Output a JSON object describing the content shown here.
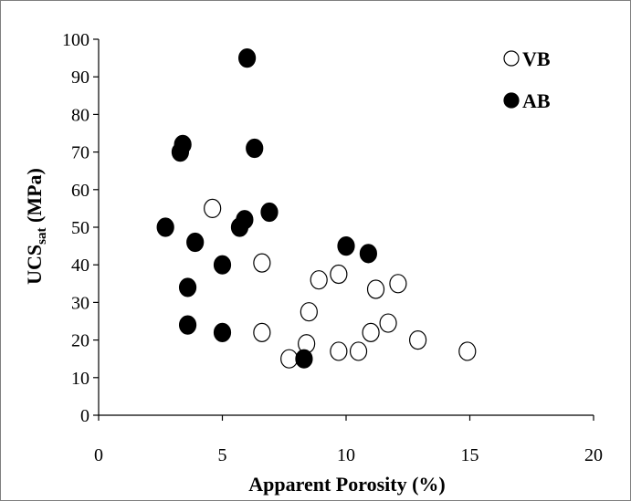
{
  "chart_data": {
    "type": "scatter",
    "title": "",
    "xlabel": "Apparent Porosity (%)",
    "ylabel": {
      "main": "UCS",
      "sub": "sat",
      "suffix": " (MPa)"
    },
    "xlim": [
      0,
      20
    ],
    "ylim": [
      0,
      100
    ],
    "xticks": [
      0,
      5,
      10,
      15,
      20
    ],
    "yticks": [
      0,
      10,
      20,
      30,
      40,
      50,
      60,
      70,
      80,
      90,
      100
    ],
    "grid": false,
    "legend_position": "top-right",
    "series": [
      {
        "name": "VB",
        "marker": "open-circle",
        "color": "#000000",
        "points": [
          [
            4.6,
            55
          ],
          [
            6.6,
            40.5
          ],
          [
            6.6,
            22
          ],
          [
            7.7,
            15
          ],
          [
            8.4,
            19
          ],
          [
            8.5,
            27.5
          ],
          [
            8.9,
            36
          ],
          [
            9.7,
            37.5
          ],
          [
            9.7,
            17
          ],
          [
            10.5,
            17
          ],
          [
            11.0,
            22
          ],
          [
            11.2,
            33.5
          ],
          [
            11.7,
            24.5
          ],
          [
            12.1,
            35
          ],
          [
            12.9,
            20
          ],
          [
            14.9,
            17
          ]
        ]
      },
      {
        "name": "AB",
        "marker": "filled-circle",
        "color": "#000000",
        "points": [
          [
            6.0,
            95
          ],
          [
            3.4,
            72
          ],
          [
            3.3,
            70
          ],
          [
            6.3,
            71
          ],
          [
            6.9,
            54
          ],
          [
            5.9,
            52
          ],
          [
            5.7,
            50
          ],
          [
            2.7,
            50
          ],
          [
            3.9,
            46
          ],
          [
            5.0,
            40
          ],
          [
            3.6,
            34
          ],
          [
            3.6,
            24
          ],
          [
            5.0,
            22
          ],
          [
            10.0,
            45
          ],
          [
            10.9,
            43
          ],
          [
            8.3,
            15
          ]
        ]
      }
    ]
  }
}
